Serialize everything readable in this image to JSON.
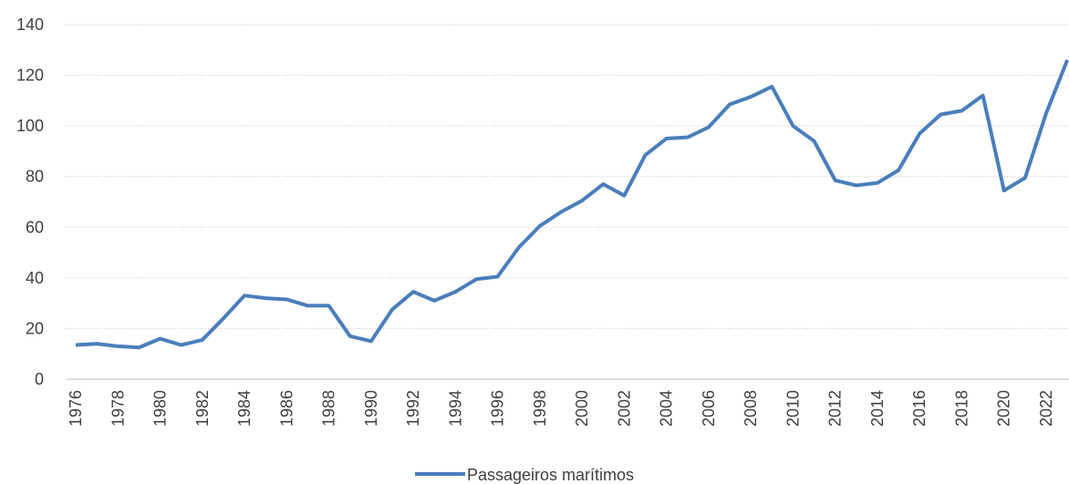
{
  "chart_data": {
    "type": "line",
    "categories": [
      "1976",
      null,
      "1978",
      null,
      "1980",
      null,
      "1982",
      null,
      "1984",
      null,
      "1986",
      null,
      "1988",
      null,
      "1990",
      null,
      "1992",
      null,
      "1994",
      null,
      "1996",
      null,
      "1998",
      null,
      "2000",
      null,
      "2002",
      null,
      "2004",
      null,
      "2006",
      null,
      "2008",
      null,
      "2010",
      null,
      "2012",
      null,
      "2014",
      null,
      "2016",
      null,
      "2018",
      null,
      "2020",
      null,
      "2022",
      null
    ],
    "series": [
      {
        "name": "Passageiros marítimos",
        "color": "#4a7ebb",
        "values": [
          13.5,
          14,
          13,
          12.5,
          16,
          13.5,
          15.5,
          24,
          33,
          32,
          31.5,
          29,
          29,
          17,
          15,
          27.5,
          34.5,
          31,
          34.5,
          39.5,
          40.5,
          52,
          60.5,
          66,
          70.5,
          77,
          72.5,
          88.5,
          95,
          95.5,
          99.5,
          108.5,
          111.5,
          115.5,
          100,
          94,
          78.5,
          76.5,
          77.5,
          82.5,
          97,
          104.5,
          106,
          112,
          74.5,
          79.5,
          105,
          126
        ]
      }
    ],
    "ylim": [
      0,
      140
    ],
    "yticks": [
      0,
      20,
      40,
      60,
      80,
      100,
      120,
      140
    ],
    "grid": true,
    "legend": "bottom"
  }
}
